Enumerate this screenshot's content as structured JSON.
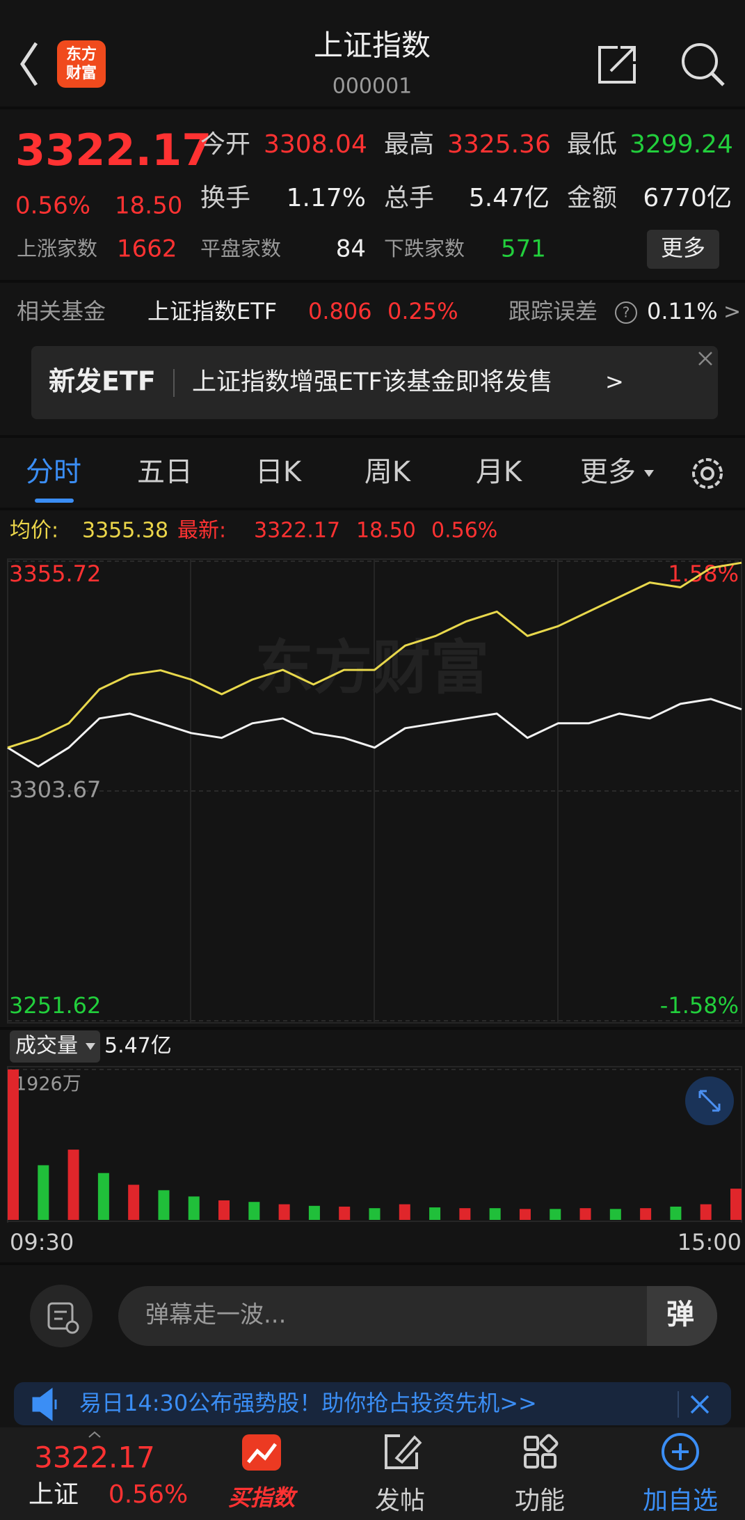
{
  "header": {
    "title": "上证指数",
    "code": "000001",
    "logo": [
      "东方",
      "财富"
    ]
  },
  "quote": {
    "price": "3322.17",
    "change_pct": "0.56%",
    "change": "18.50",
    "stats": [
      {
        "label": "今开",
        "value": "3308.04"
      },
      {
        "label": "最高",
        "value": "3325.36"
      },
      {
        "label": "最低",
        "value": "3299.24"
      },
      {
        "label": "换手",
        "value": "1.17%"
      },
      {
        "label": "总手",
        "value": "5.47亿"
      },
      {
        "label": "金额",
        "value": "6770亿"
      }
    ],
    "breadth": [
      {
        "label": "上涨家数",
        "value": "1662"
      },
      {
        "label": "平盘家数",
        "value": "84"
      },
      {
        "label": "下跌家数",
        "value": "571"
      }
    ],
    "more": "更多"
  },
  "fund": {
    "label": "相关基金",
    "name": "上证指数ETF",
    "price": "0.806",
    "change_pct": "0.25%",
    "error_label": "跟踪误差",
    "help": "?",
    "error": "0.11%",
    "arrow": ">"
  },
  "banner": {
    "tag": "新发ETF",
    "text": "上证指数增强ETF该基金即将发售",
    "arrow": ">"
  },
  "tabs": [
    "分时",
    "五日",
    "日K",
    "周K",
    "月K",
    "更多"
  ],
  "chart_info": {
    "avg_label": "均价:",
    "avg": "3355.38",
    "last_label": "最新:",
    "last": "3322.17",
    "change": "18.50",
    "change_pct": "0.56%"
  },
  "watermark": "东方财富",
  "chart_data": [
    {
      "type": "line",
      "x": [
        0,
        10,
        20,
        30,
        40,
        50,
        60,
        70,
        80,
        90,
        100,
        110,
        120,
        130,
        140,
        150,
        160,
        170,
        180,
        190,
        200,
        210,
        220,
        230,
        240
      ],
      "xlim": [
        0,
        240
      ],
      "ylim": [
        3251.62,
        3355.72
      ],
      "yticks": [
        3251.62,
        3303.67,
        3355.72
      ],
      "y2lim": [
        -1.58,
        1.58
      ],
      "y2ticks": [
        {
          "value": -1.58,
          "label": "-1.58%"
        },
        {
          "value": 1.58,
          "label": "1.58%"
        }
      ],
      "series": [
        {
          "color": "#f2f2f2",
          "values": [
            3313.5,
            3309.2,
            3313.5,
            3320.1,
            3321.2,
            3319.0,
            3316.8,
            3315.7,
            3319.0,
            3320.1,
            3316.8,
            3315.7,
            3313.5,
            3317.9,
            3319.0,
            3320.1,
            3321.2,
            3315.7,
            3319.0,
            3319.0,
            3321.2,
            3320.1,
            3323.4,
            3324.5,
            3322.17
          ]
        },
        {
          "color": "#e8d84c",
          "values": [
            3313.5,
            3315.7,
            3319.0,
            3326.7,
            3330.0,
            3331.0,
            3328.9,
            3325.6,
            3328.9,
            3331.1,
            3327.8,
            3331.1,
            3331.1,
            3336.6,
            3338.8,
            3342.1,
            3344.3,
            3338.8,
            3341.0,
            3344.3,
            3347.6,
            3350.9,
            3349.8,
            3354.2,
            3355.38
          ]
        }
      ]
    },
    {
      "type": "bar",
      "x": [
        0,
        10,
        20,
        30,
        40,
        50,
        60,
        70,
        80,
        90,
        100,
        110,
        120,
        130,
        140,
        150,
        160,
        170,
        180,
        190,
        200,
        210,
        220,
        230,
        240
      ],
      "xlim": [
        0,
        240
      ],
      "xticks": [
        {
          "value": 0,
          "label": "09:30"
        },
        {
          "value": 240,
          "label": "15:00"
        }
      ],
      "ylim": [
        0,
        1926
      ],
      "yticks": [
        {
          "value": 1926,
          "label": "1926万"
        }
      ],
      "series": [
        {
          "color": "#e0262b",
          "values": [
            1926,
            null,
            900,
            null,
            450,
            null,
            null,
            250,
            null,
            200,
            null,
            170,
            null,
            200,
            null,
            150,
            null,
            140,
            null,
            150,
            null,
            150,
            null,
            200,
            400
          ]
        },
        {
          "color": "#20bf3a",
          "values": [
            null,
            700,
            null,
            600,
            null,
            380,
            300,
            null,
            230,
            null,
            180,
            null,
            150,
            null,
            160,
            null,
            150,
            null,
            140,
            null,
            140,
            null,
            170,
            null,
            null
          ]
        }
      ]
    }
  ],
  "volume_header": {
    "label": "成交量",
    "total": "5.47亿"
  },
  "danmaku": {
    "placeholder": "弹幕走一波...",
    "button": "弹"
  },
  "notice": {
    "text": "易日14:30公布强势股！助你抢占投资先机>>"
  },
  "bottom_nav": {
    "price": "3322.17",
    "name": "上证",
    "change_pct": "0.56%",
    "items": [
      "买指数",
      "发帖",
      "功能",
      "加自选"
    ]
  }
}
